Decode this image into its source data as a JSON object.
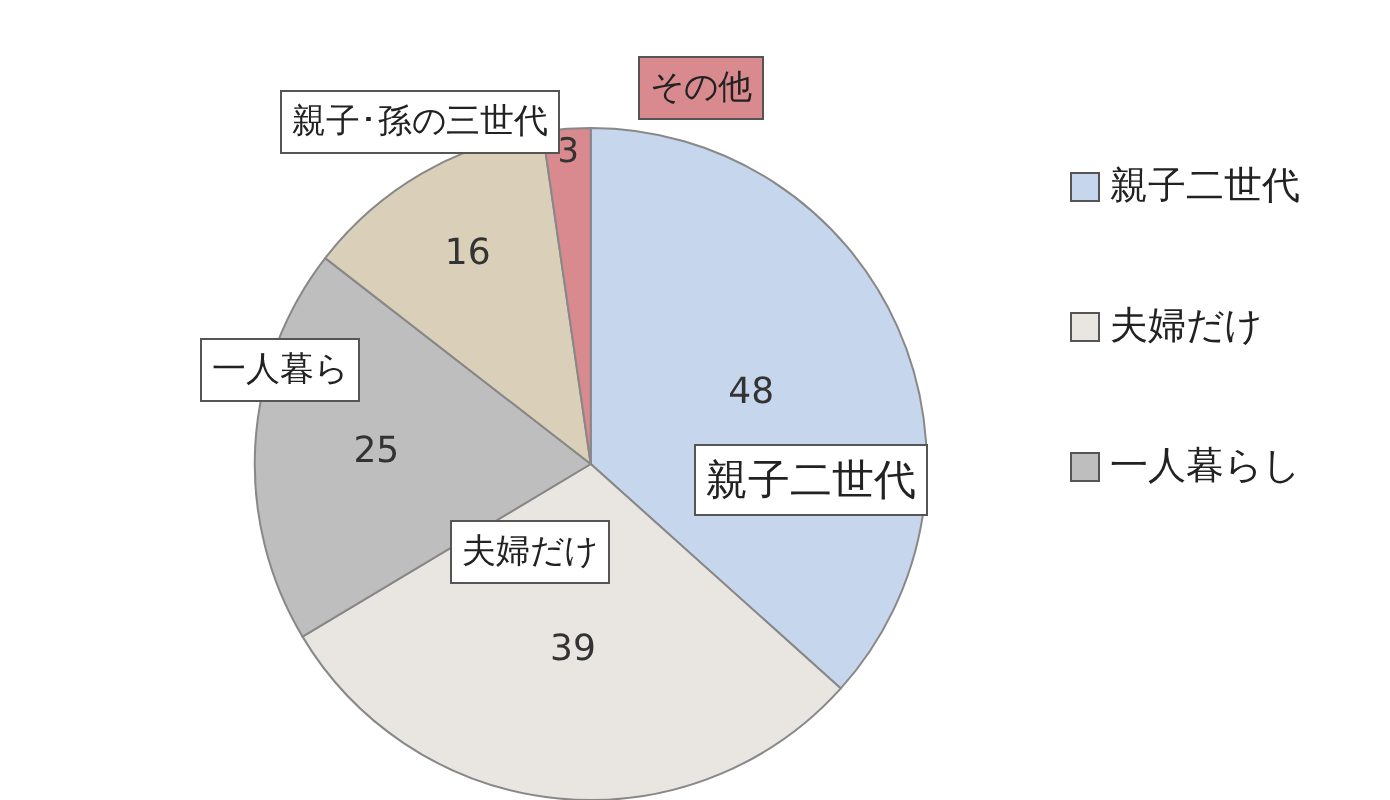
{
  "chart_data": {
    "type": "pie",
    "categories": [
      "親子二世代",
      "夫婦だけ",
      "一人暮らし",
      null,
      null
    ],
    "values": [
      48,
      39,
      25,
      16,
      3
    ],
    "colors": [
      "#c6d6ec",
      "#e9e6e2",
      "#bebebe",
      "#dacfb8",
      "#d98a8e"
    ],
    "data_labels": true,
    "legend": "right",
    "annotations": [
      "親子二世代",
      "夫婦だけ",
      "一人暮ら",
      "親子･孫の三世代",
      "その他"
    ]
  }
}
